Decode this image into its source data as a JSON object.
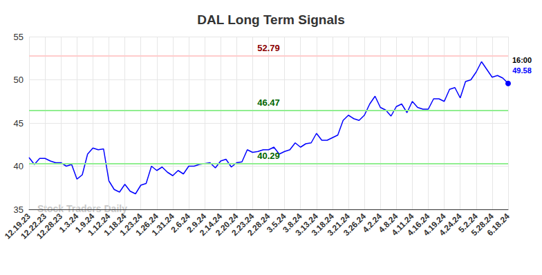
{
  "chart_data": {
    "type": "line",
    "title": "DAL Long Term Signals",
    "watermark": "Stock Traders Daily",
    "categories": [
      "12.19.23",
      null,
      null,
      "12.22.23",
      null,
      null,
      "12.28.23",
      null,
      null,
      "1.3.24",
      null,
      null,
      "1.9.24",
      null,
      null,
      "1.12.24",
      null,
      null,
      "1.18.24",
      null,
      null,
      "1.23.24",
      null,
      null,
      "1.26.24",
      null,
      null,
      "1.31.24",
      null,
      null,
      "2.6.24",
      null,
      null,
      "2.9.24",
      null,
      null,
      "2.14.24",
      null,
      null,
      "2.20.24",
      null,
      null,
      "2.23.24",
      null,
      null,
      "2.28.24",
      null,
      null,
      "3.5.24",
      null,
      null,
      "3.8.24",
      null,
      null,
      "3.13.24",
      null,
      null,
      "3.18.24",
      null,
      null,
      "3.21.24",
      null,
      null,
      "3.26.24",
      null,
      null,
      "4.2.24",
      null,
      null,
      "4.8.24",
      null,
      null,
      "4.11.24",
      null,
      null,
      "4.16.24",
      null,
      null,
      "4.19.24",
      null,
      null,
      "4.24.24",
      null,
      null,
      "5.2.24",
      null,
      null,
      "5.28.24",
      null,
      null,
      "6.18.24"
    ],
    "values": [
      41.0,
      40.2,
      40.9,
      40.9,
      40.6,
      40.4,
      40.4,
      40.0,
      40.2,
      38.5,
      39.0,
      41.4,
      42.1,
      41.9,
      42.0,
      38.3,
      37.3,
      37.0,
      37.9,
      37.1,
      36.8,
      37.8,
      38.0,
      40.0,
      39.5,
      39.9,
      39.3,
      38.9,
      39.5,
      39.1,
      40.0,
      40.0,
      40.2,
      40.3,
      40.4,
      39.8,
      40.6,
      40.8,
      39.9,
      40.4,
      40.5,
      41.9,
      41.6,
      41.7,
      41.9,
      41.9,
      42.2,
      41.4,
      41.7,
      41.9,
      42.7,
      42.2,
      42.6,
      42.7,
      43.8,
      43.0,
      43.0,
      43.3,
      43.6,
      45.3,
      45.9,
      45.5,
      45.3,
      45.9,
      47.2,
      48.1,
      46.8,
      46.5,
      45.8,
      46.9,
      47.2,
      46.2,
      47.5,
      46.8,
      46.6,
      46.6,
      47.8,
      47.8,
      47.5,
      48.9,
      49.1,
      47.9,
      49.8,
      50.0,
      50.9,
      52.1,
      51.2,
      50.3,
      50.5,
      50.2,
      49.58
    ],
    "color": "#0000ff",
    "ylim": [
      35,
      55
    ],
    "yticks": [
      35,
      40,
      45,
      50,
      55
    ],
    "grid": true,
    "reference_lines": [
      {
        "value": 52.79,
        "color": "#ffcccc"
      },
      {
        "value": 46.47,
        "color": "#90ee90"
      },
      {
        "value": 40.29,
        "color": "#90ee90"
      }
    ],
    "last_point_label": "16:00"
  }
}
